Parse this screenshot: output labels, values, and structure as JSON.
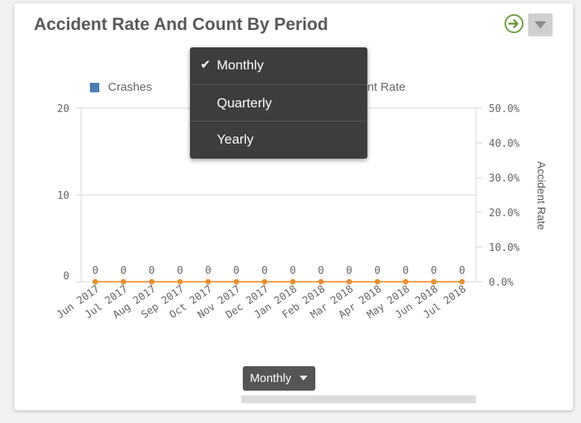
{
  "header": {
    "title": "Accident Rate And Count By Period"
  },
  "icons": {
    "go": "arrow-right-circle-icon",
    "menu": "chevron-down-icon",
    "check": "check-icon"
  },
  "colors": {
    "crashes": "#4a7eb5",
    "rate_line": "#f0a04b",
    "rate_point": "#e8902e",
    "go_icon": "#6f9b3d"
  },
  "dropdown": {
    "items": [
      {
        "label": "Monthly",
        "checked": true
      },
      {
        "label": "Quarterly",
        "checked": false
      },
      {
        "label": "Yearly",
        "checked": false
      }
    ]
  },
  "period_selector": {
    "label": "Monthly"
  },
  "chart_data": {
    "type": "bar",
    "legend": [
      "Crashes",
      "nt Rate"
    ],
    "categories": [
      "Jun 2017",
      "Jul 2017",
      "Aug 2017",
      "Sep 2017",
      "Oct 2017",
      "Nov 2017",
      "Dec 2017",
      "Jan 2018",
      "Feb 2018",
      "Mar 2018",
      "Apr 2018",
      "May 2018",
      "Jun 2018",
      "Jul 2018"
    ],
    "series": [
      {
        "name": "Crashes",
        "axis": "left",
        "values": [
          0,
          0,
          0,
          0,
          0,
          0,
          0,
          0,
          0,
          0,
          0,
          0,
          0,
          0
        ]
      },
      {
        "axis": "right",
        "kind": "line",
        "values": [
          0,
          0,
          0,
          0,
          0,
          0,
          0,
          0,
          0,
          0,
          0,
          0,
          0,
          0
        ]
      }
    ],
    "data_labels": [
      "0",
      "0",
      "0",
      "0",
      "0",
      "0",
      "0",
      "0",
      "0",
      "0",
      "0",
      "0",
      "0",
      "0"
    ],
    "y_left": {
      "ticks": [
        "0",
        "10",
        "20"
      ],
      "range": [
        0,
        20
      ]
    },
    "y_right": {
      "label": "Accident Rate",
      "ticks": [
        "0.0%",
        "10.0%",
        "20.0%",
        "30.0%",
        "40.0%",
        "50.0%"
      ],
      "range": [
        0,
        50
      ]
    },
    "grid": true
  }
}
